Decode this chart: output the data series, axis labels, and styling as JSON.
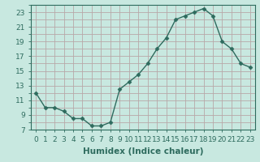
{
  "x": [
    0,
    1,
    2,
    3,
    4,
    5,
    6,
    7,
    8,
    9,
    10,
    11,
    12,
    13,
    14,
    15,
    16,
    17,
    18,
    19,
    20,
    21,
    22,
    23
  ],
  "y": [
    12,
    10,
    10,
    9.5,
    8.5,
    8.5,
    7.5,
    7.5,
    8,
    12.5,
    13.5,
    14.5,
    16,
    18,
    19.5,
    22,
    22.5,
    23,
    23.5,
    22.5,
    19,
    18,
    16,
    15.5
  ],
  "line_color": "#2e6b5e",
  "marker": "D",
  "marker_size": 2.5,
  "bg_color": "#c8e8e0",
  "grid_color": "#b8a8a8",
  "xlabel": "Humidex (Indice chaleur)",
  "ylim": [
    7,
    24
  ],
  "xlim": [
    -0.5,
    23.5
  ],
  "yticks": [
    7,
    9,
    11,
    13,
    15,
    17,
    19,
    21,
    23
  ],
  "xticks": [
    0,
    1,
    2,
    3,
    4,
    5,
    6,
    7,
    8,
    9,
    10,
    11,
    12,
    13,
    14,
    15,
    16,
    17,
    18,
    19,
    20,
    21,
    22,
    23
  ],
  "font_color": "#2e6b5e",
  "font_size": 6.5,
  "xlabel_fontsize": 7.5
}
